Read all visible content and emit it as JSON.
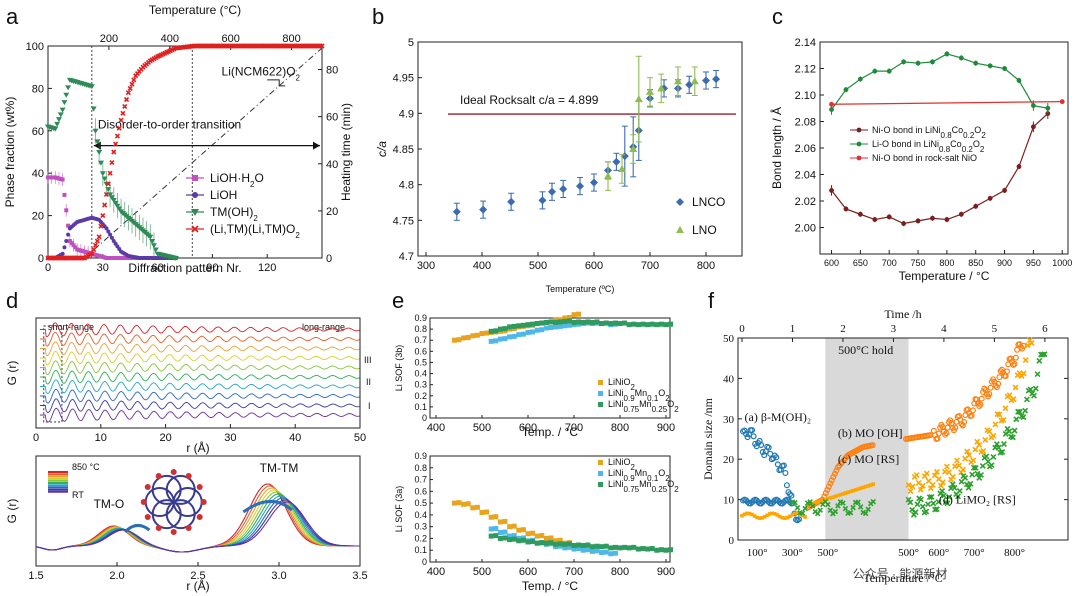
{
  "chart_data": [
    {
      "panel": "a",
      "type": "scatter",
      "xlabel": "Diffraction pattern Nr.",
      "ylabel": "Phase fraction (wt%)",
      "top_xlabel": "Temperature (°C)",
      "right_ylabel": "Heating time (min)",
      "xlim": [
        0,
        150
      ],
      "ylim": [
        0,
        100
      ],
      "top_xlim": [
        0,
        900
      ],
      "right_ylim": [
        0,
        90
      ],
      "xticks": [
        "0",
        "30",
        "60",
        "90",
        "120"
      ],
      "yticks": [
        "0",
        "20",
        "40",
        "60",
        "80",
        "100"
      ],
      "top_xticks": [
        "200",
        "400",
        "600",
        "800"
      ],
      "right_yticks": [
        "0",
        "20",
        "40",
        "60",
        "80"
      ],
      "annotations": [
        "Li(NCM622)O",
        "Disorder-to-order transition"
      ],
      "annotation_sub": "2",
      "legend_entries": [
        "LiOH·H",
        "LiOH",
        "TM(OH)",
        "(Li,TM)(Li,TM)O"
      ],
      "series": [
        {
          "name": "LiOH·H2O",
          "color": "#c050c0",
          "x": [
            0,
            4,
            8,
            12,
            16,
            20,
            24,
            28,
            32,
            36,
            40,
            50,
            60,
            80,
            100,
            120,
            150
          ],
          "y": [
            38,
            38,
            37,
            8,
            4,
            3,
            2,
            1,
            0,
            0,
            0,
            0,
            0,
            0,
            0,
            0,
            0
          ]
        },
        {
          "name": "LiOH",
          "color": "#5a3aa6",
          "x": [
            0,
            4,
            8,
            10,
            12,
            16,
            20,
            24,
            28,
            32,
            36,
            40,
            44,
            50,
            60,
            80,
            150
          ],
          "y": [
            0,
            0,
            2,
            8,
            14,
            17,
            18,
            19,
            18,
            14,
            8,
            3,
            1,
            0,
            0,
            0,
            0
          ]
        },
        {
          "name": "TM(OH)2",
          "color": "#2e8b57",
          "x": [
            0,
            4,
            8,
            12,
            16,
            20,
            24,
            26,
            28,
            30,
            34,
            40,
            48,
            56,
            60,
            70,
            150
          ],
          "y": [
            62,
            61,
            70,
            84,
            83,
            82,
            81,
            60,
            50,
            40,
            30,
            22,
            16,
            10,
            2,
            0,
            0
          ]
        },
        {
          "name": "(Li,TM)(Li,TM)O2",
          "color": "#e02020",
          "x": [
            0,
            20,
            24,
            28,
            32,
            36,
            40,
            44,
            48,
            52,
            56,
            60,
            70,
            80,
            100,
            120,
            150
          ],
          "y": [
            0,
            0,
            2,
            10,
            30,
            50,
            65,
            78,
            86,
            90,
            93,
            95,
            99,
            100,
            100,
            100,
            100
          ]
        }
      ],
      "line_colors": {
        "ideal": "#9b1c2c"
      }
    },
    {
      "panel": "b",
      "type": "scatter",
      "xlabel": "Temperature (ºC)",
      "ylabel": "c/a",
      "xlim": [
        300,
        850
      ],
      "ylim": [
        4.7,
        5.0
      ],
      "xticks": [
        "300",
        "400",
        "500",
        "600",
        "700",
        "800"
      ],
      "yticks": [
        "4.7",
        "4.75",
        "4.8",
        "4.85",
        "4.9",
        "4.95",
        "5"
      ],
      "annotation": "Ideal Rocksalt c/a = 4.899",
      "reference_line": 4.899,
      "series": [
        {
          "name": "LNCO",
          "color": "#3b6bb0",
          "x": [
            355,
            402,
            452,
            508,
            525,
            545,
            575,
            600,
            625,
            640,
            655,
            670,
            680,
            700,
            725,
            750,
            770,
            800,
            818
          ],
          "y": [
            4.762,
            4.765,
            4.776,
            4.778,
            4.79,
            4.794,
            4.798,
            4.803,
            4.82,
            4.832,
            4.84,
            4.853,
            4.876,
            4.921,
            4.935,
            4.935,
            4.94,
            4.946,
            4.948
          ]
        },
        {
          "name": "LNO",
          "color": "#8fbc4f",
          "x": [
            625,
            650,
            670,
            680,
            700,
            720,
            750,
            780
          ],
          "y": [
            4.812,
            4.822,
            4.85,
            4.92,
            4.93,
            4.935,
            4.945,
            4.945
          ]
        }
      ]
    },
    {
      "panel": "c",
      "type": "line",
      "xlabel": "Temperature / °C",
      "ylabel": "Bond length / Å",
      "xlim": [
        580,
        1010
      ],
      "ylim": [
        1.98,
        2.14
      ],
      "xticks": [
        "600",
        "650",
        "700",
        "750",
        "800",
        "850",
        "900",
        "950",
        "1000"
      ],
      "yticks": [
        "2.00",
        "2.02",
        "2.04",
        "2.06",
        "2.08",
        "2.10",
        "2.12",
        "2.14"
      ],
      "legend_entries": [
        "Ni-O bond in LiNi",
        "Li-O bond in LiNi",
        "Ni-O bond in rock-salt NiO"
      ],
      "legend_sub": [
        "0.8",
        "Co",
        "0.2",
        "O",
        "2"
      ],
      "series": [
        {
          "name": "Ni-O bond in LiNi0.8Co0.2O2",
          "color": "#7a1f1f",
          "x": [
            600,
            625,
            650,
            675,
            700,
            725,
            750,
            775,
            800,
            825,
            850,
            875,
            900,
            925,
            950,
            975
          ],
          "y": [
            2.028,
            2.014,
            2.01,
            2.006,
            2.008,
            2.003,
            2.005,
            2.007,
            2.006,
            2.01,
            2.016,
            2.022,
            2.028,
            2.046,
            2.076,
            2.086
          ]
        },
        {
          "name": "Li-O bond in LiNi0.8Co0.2O2",
          "color": "#1f8b3a",
          "x": [
            600,
            625,
            650,
            675,
            700,
            725,
            750,
            775,
            800,
            825,
            850,
            875,
            900,
            925,
            950,
            975
          ],
          "y": [
            2.089,
            2.104,
            2.112,
            2.118,
            2.118,
            2.125,
            2.124,
            2.125,
            2.131,
            2.128,
            2.124,
            2.122,
            2.12,
            2.111,
            2.092,
            2.09
          ]
        },
        {
          "name": "Ni-O bond in rock-salt NiO",
          "color": "#e03030",
          "x": [
            600,
            1000
          ],
          "y": [
            2.093,
            2.095
          ]
        }
      ]
    },
    {
      "panel": "d",
      "type": "line",
      "xlabel": "r (Å)",
      "ylabel": "G (r)",
      "xlim": [
        0,
        50
      ],
      "xticks": [
        "0",
        "10",
        "20",
        "30",
        "40",
        "50"
      ],
      "zoom_xlim": [
        1.5,
        3.5
      ],
      "zoom_xticks": [
        "1.5",
        "2.0",
        "2.5",
        "3.0",
        "3.5"
      ],
      "annotations": [
        "short-range",
        "long-range",
        "III",
        "II",
        "I",
        "TM-O",
        "TM-TM",
        "850 °C",
        "RT"
      ],
      "color_scale": [
        "#d0262a",
        "#e0602b",
        "#e8a23a",
        "#d6d02f",
        "#8ac43f",
        "#2fae5f",
        "#25a7c9",
        "#2c66c8",
        "#3b3aa0",
        "#6a2ea0"
      ]
    },
    {
      "panel": "e",
      "type": "scatter",
      "xlabel": "Temp. / °C",
      "ylabel_top": "Li SOF (3b)",
      "ylabel_bottom": "Li SOF (3a)",
      "xlim": [
        400,
        900
      ],
      "ylim": [
        0,
        0.9
      ],
      "xticks": [
        "400",
        "500",
        "600",
        "700",
        "800",
        "900"
      ],
      "yticks": [
        "0",
        "0.1",
        "0.2",
        "0.3",
        "0.4",
        "0.5",
        "0.6",
        "0.7",
        "0.8",
        "0.9"
      ],
      "legend_entries": [
        "LiNiO",
        "LiNi",
        "LiNi"
      ],
      "legend_sub": [
        "2",
        "0.9",
        "Mn",
        "0.1",
        "O",
        "0.75",
        "0.25"
      ],
      "series_top": [
        {
          "name": "LiNiO2",
          "color": "#e8a41c",
          "x": [
            440,
            460,
            480,
            500,
            520,
            540,
            560,
            580,
            600,
            620,
            640,
            660,
            680,
            700
          ],
          "y": [
            0.7,
            0.72,
            0.74,
            0.76,
            0.77,
            0.78,
            0.8,
            0.82,
            0.83,
            0.85,
            0.86,
            0.88,
            0.9,
            0.93
          ]
        },
        {
          "name": "LiNi0.9Mn0.1O2",
          "color": "#4fb8e8",
          "x": [
            520,
            540,
            560,
            580,
            600,
            620,
            640,
            660,
            680,
            700,
            720,
            740,
            760,
            780
          ],
          "y": [
            0.69,
            0.71,
            0.73,
            0.75,
            0.77,
            0.79,
            0.81,
            0.82,
            0.83,
            0.84,
            0.85,
            0.85,
            0.85,
            0.84
          ]
        },
        {
          "name": "LiNi0.75Mn0.25O2",
          "color": "#2e9a5e",
          "x": [
            520,
            540,
            560,
            580,
            600,
            620,
            640,
            660,
            680,
            700,
            720,
            740,
            760,
            780,
            800,
            820,
            840,
            860,
            880,
            900
          ],
          "y": [
            0.78,
            0.8,
            0.82,
            0.83,
            0.84,
            0.85,
            0.86,
            0.86,
            0.87,
            0.86,
            0.86,
            0.86,
            0.85,
            0.85,
            0.85,
            0.84,
            0.84,
            0.84,
            0.84,
            0.84
          ]
        }
      ],
      "series_bottom": [
        {
          "name": "LiNiO2",
          "color": "#e8a41c",
          "x": [
            440,
            460,
            480,
            500,
            520,
            540,
            560,
            580,
            600,
            620,
            640,
            660,
            680,
            700
          ],
          "y": [
            0.5,
            0.49,
            0.46,
            0.42,
            0.38,
            0.34,
            0.3,
            0.27,
            0.24,
            0.22,
            0.2,
            0.18,
            0.16,
            0.13
          ]
        },
        {
          "name": "LiNi0.9Mn0.1O2",
          "color": "#4fb8e8",
          "x": [
            520,
            540,
            560,
            580,
            600,
            620,
            640,
            660,
            680,
            700,
            720,
            740,
            760,
            780
          ],
          "y": [
            0.28,
            0.25,
            0.22,
            0.2,
            0.18,
            0.16,
            0.15,
            0.13,
            0.12,
            0.11,
            0.1,
            0.09,
            0.08,
            0.07
          ]
        },
        {
          "name": "LiNi0.75Mn0.25O2",
          "color": "#2e9a5e",
          "x": [
            520,
            540,
            560,
            580,
            600,
            620,
            640,
            660,
            680,
            700,
            720,
            740,
            760,
            780,
            800,
            820,
            840,
            860,
            880,
            900
          ],
          "y": [
            0.22,
            0.2,
            0.19,
            0.18,
            0.17,
            0.16,
            0.16,
            0.15,
            0.15,
            0.14,
            0.14,
            0.13,
            0.13,
            0.12,
            0.12,
            0.12,
            0.11,
            0.11,
            0.1,
            0.1
          ]
        }
      ]
    },
    {
      "panel": "f",
      "type": "scatter",
      "xlabel": "Temperature /°C",
      "ylabel": "Domain size /nm",
      "top_xlabel": "Time /h",
      "xlim": [
        0,
        6.3
      ],
      "ylim": [
        0,
        50
      ],
      "top_xticks": [
        "0",
        "1",
        "2",
        "3",
        "4",
        "5",
        "6"
      ],
      "yticks": [
        "0",
        "10",
        "20",
        "30",
        "40",
        "50"
      ],
      "bottom_xticks": [
        "100°",
        "300°",
        "500°",
        "500°",
        "600°",
        "700°",
        "800°"
      ],
      "shaded_band": "500°C hold",
      "shaded_range": [
        1.65,
        3.3
      ],
      "series": [
        {
          "name": "(a) β-M(OH)₂",
          "color": "#1f77b4"
        },
        {
          "name": "(b) MO [OH]",
          "color": "#ff7f0e"
        },
        {
          "name": "(c) MO [RS]",
          "color": "#ffa500"
        },
        {
          "name": "(d) LiMO₂ [RS]",
          "color": "#2ca02c"
        }
      ]
    }
  ],
  "watermark": "公众号 · 能源新材"
}
